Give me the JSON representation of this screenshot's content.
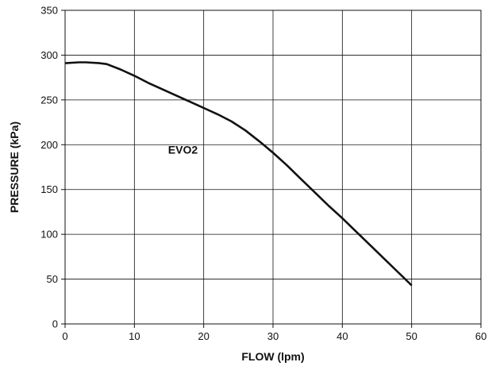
{
  "chart_data": {
    "type": "line",
    "title": "",
    "xlabel": "FLOW (lpm)",
    "ylabel": "PRESSURE (kPa)",
    "xlim": [
      0,
      60
    ],
    "ylim": [
      0,
      350
    ],
    "xticks": [
      0,
      10,
      20,
      30,
      40,
      50,
      60
    ],
    "yticks": [
      0,
      50,
      100,
      150,
      200,
      250,
      300,
      350
    ],
    "grid": true,
    "series": [
      {
        "name": "",
        "color": "#111111",
        "x": [
          0,
          2,
          3,
          5,
          6,
          8,
          10,
          12,
          14,
          16,
          18,
          20,
          22,
          24,
          26,
          28,
          30,
          32,
          34,
          36,
          38,
          40,
          42,
          44,
          46,
          48,
          50
        ],
        "y": [
          291,
          292,
          292,
          291,
          290,
          284,
          277,
          269,
          262,
          255,
          248,
          241,
          234,
          226,
          216,
          204,
          191,
          177,
          162,
          147,
          132,
          118,
          103,
          88,
          73,
          58,
          43
        ]
      }
    ],
    "annotations": [
      {
        "text": "EVO2",
        "x": 17,
        "y": 190
      }
    ]
  }
}
